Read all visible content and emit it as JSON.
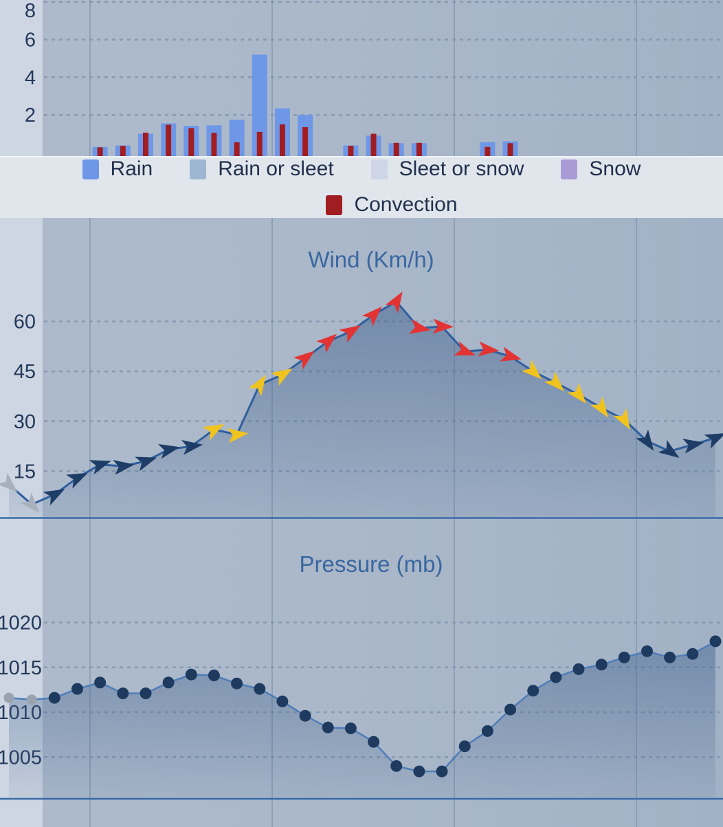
{
  "legend": {
    "row1": [
      {
        "label": "Rain",
        "color": "#6e97e8"
      },
      {
        "label": "Rain or sleet",
        "color": "#9db6d2"
      },
      {
        "label": "Sleet or snow",
        "color": "#cdd5e6"
      },
      {
        "label": "Snow",
        "color": "#aa9bd6"
      }
    ],
    "row2": [
      {
        "label": "Convection",
        "color": "#a01d22"
      }
    ]
  },
  "chart_data": [
    {
      "id": "precipitation",
      "type": "bar",
      "title": "",
      "yticks": [
        2,
        4,
        6,
        8
      ],
      "ylim": [
        0,
        8.5
      ],
      "series": [
        {
          "name": "Rain",
          "color": "#6e97e8",
          "values": [
            0,
            0,
            0,
            0,
            0.3,
            0.38,
            1.0,
            1.55,
            1.42,
            1.45,
            1.75,
            5.2,
            2.35,
            2.0,
            0,
            0.38,
            0.9,
            0.5,
            0.5,
            0,
            0,
            0.55,
            0.6,
            0,
            0,
            0,
            0,
            0,
            0,
            0,
            0,
            0
          ]
        },
        {
          "name": "Convection",
          "color": "#a01d22",
          "values": [
            0,
            0,
            0,
            0,
            0.28,
            0.36,
            1.06,
            1.48,
            1.3,
            1.05,
            0.55,
            1.1,
            1.5,
            1.35,
            0,
            0.36,
            1.0,
            0.52,
            0.52,
            0,
            0,
            0.3,
            0.5,
            0,
            0,
            0,
            0,
            0,
            0,
            0,
            0,
            0
          ]
        }
      ]
    },
    {
      "id": "wind",
      "type": "line",
      "title": "Wind (Km/h)",
      "yticks": [
        15,
        30,
        45,
        60
      ],
      "ylim": [
        0,
        72
      ],
      "values": [
        11,
        5,
        8,
        13,
        17,
        16.5,
        18,
        21.5,
        22.5,
        27.5,
        26,
        41,
        44,
        49,
        54,
        57,
        62,
        66,
        58,
        58.5,
        51,
        51.5,
        49.5,
        45,
        41.5,
        38,
        34,
        30.5,
        24,
        21,
        23,
        25
      ],
      "point_colors": [
        "gray",
        "gray",
        "navy",
        "navy",
        "navy",
        "navy",
        "navy",
        "navy",
        "navy",
        "yellow",
        "yellow",
        "yellow",
        "yellow",
        "red",
        "red",
        "red",
        "red",
        "red",
        "red",
        "red",
        "red",
        "red",
        "red",
        "yellow",
        "yellow",
        "yellow",
        "yellow",
        "yellow",
        "navy",
        "navy",
        "navy",
        "navy"
      ],
      "arrow_angles_deg": [
        42,
        48,
        -28,
        -25,
        -18,
        -8,
        -18,
        -12,
        -8,
        -28,
        -6,
        -58,
        -32,
        -38,
        -40,
        -32,
        -45,
        -58,
        10,
        2,
        20,
        5,
        15,
        42,
        45,
        50,
        55,
        60,
        55,
        35,
        -10,
        -25
      ],
      "palette": {
        "navy": "#1e3d66",
        "yellow": "#f0c31f",
        "red": "#e23434",
        "gray": "#a7b0bb"
      },
      "line_color": "#2f5f9e"
    },
    {
      "id": "pressure",
      "type": "line",
      "title": "Pressure (mb)",
      "yticks": [
        1005,
        1010,
        1015,
        1020
      ],
      "ylim": [
        1000.3,
        1024
      ],
      "values": [
        1011.6,
        1011.4,
        1011.6,
        1012.6,
        1013.3,
        1012.1,
        1012.1,
        1013.3,
        1014.2,
        1014.1,
        1013.2,
        1012.6,
        1011.2,
        1009.6,
        1008.3,
        1008.2,
        1006.7,
        1004.0,
        1003.4,
        1003.4,
        1006.2,
        1007.9,
        1010.3,
        1012.4,
        1013.9,
        1014.8,
        1015.3,
        1016.1,
        1016.8,
        1016.1,
        1016.5,
        1017.9
      ],
      "gray_points": [
        0,
        1
      ],
      "line_color": "#4f7db8",
      "dot_color": "#1e3a5f",
      "gray_dot_color": "#9aa3ad"
    }
  ]
}
